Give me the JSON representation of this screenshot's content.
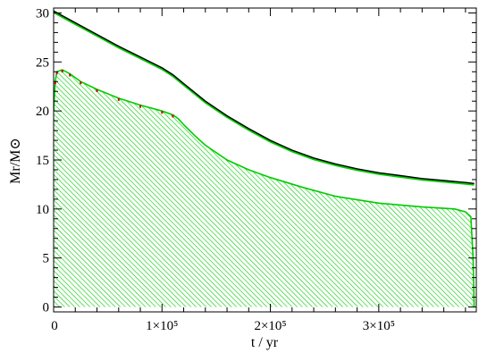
{
  "chart_data": {
    "type": "area",
    "title": "",
    "xlabel": "t / yr",
    "ylabel": "Mr/M⊙",
    "xlim": [
      0,
      390000
    ],
    "ylim": [
      -0.5,
      30.5
    ],
    "x_ticks": [
      {
        "value": 0,
        "label": "0"
      },
      {
        "value": 100000,
        "label": "1×10⁵"
      },
      {
        "value": 200000,
        "label": "2×10⁵"
      },
      {
        "value": 300000,
        "label": "3×10⁵"
      }
    ],
    "y_ticks": [
      {
        "value": 0,
        "label": "0"
      },
      {
        "value": 5,
        "label": "5"
      },
      {
        "value": 10,
        "label": "10"
      },
      {
        "value": 15,
        "label": "15"
      },
      {
        "value": 20,
        "label": "20"
      },
      {
        "value": 25,
        "label": "25"
      },
      {
        "value": 30,
        "label": "30"
      }
    ],
    "grid": false,
    "colors": {
      "total_mass_line": "#000000",
      "convective_hatch": "#00cc00",
      "convective_edge": "#cc0000"
    },
    "series": [
      {
        "kind": "line",
        "x": [
          0,
          20000,
          40000,
          60000,
          80000,
          100000,
          110000,
          120000,
          140000,
          160000,
          180000,
          200000,
          220000,
          240000,
          260000,
          280000,
          300000,
          320000,
          340000,
          360000,
          380000,
          388000
        ],
        "y": [
          30.2,
          29.0,
          27.8,
          26.6,
          25.5,
          24.4,
          23.7,
          22.8,
          21.0,
          19.5,
          18.2,
          17.0,
          16.0,
          15.2,
          14.6,
          14.1,
          13.7,
          13.4,
          13.1,
          12.9,
          12.7,
          12.6
        ]
      },
      {
        "kind": "area",
        "x": [
          0,
          1500,
          3000,
          8000,
          15000,
          25000,
          40000,
          60000,
          80000,
          100000,
          110000,
          115000,
          120000,
          130000,
          140000,
          160000,
          180000,
          200000,
          230000,
          260000,
          300000,
          340000,
          370000,
          380000,
          385000,
          387000,
          388000
        ],
        "y": [
          20.0,
          23.0,
          24.0,
          24.2,
          23.8,
          23.0,
          22.2,
          21.3,
          20.6,
          20.0,
          19.6,
          19.2,
          18.6,
          17.5,
          16.5,
          15.0,
          14.0,
          13.2,
          12.2,
          11.3,
          10.6,
          10.2,
          10.0,
          9.7,
          9.2,
          5.0,
          0.0
        ]
      }
    ]
  }
}
